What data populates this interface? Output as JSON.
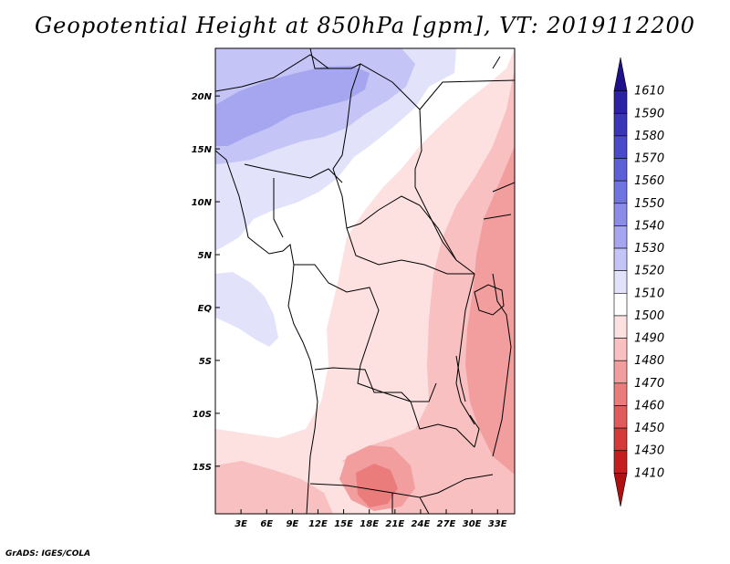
{
  "title": "Geopotential Height at 850hPa [gpm], VT: 2019112200",
  "credit": "GrADS: IGES/COLA",
  "map": {
    "lon_range": [
      0,
      35
    ],
    "lat_range": [
      -19.5,
      24.5
    ],
    "lon_ticks": [
      {
        "v": 3,
        "label": "3E"
      },
      {
        "v": 6,
        "label": "6E"
      },
      {
        "v": 9,
        "label": "9E"
      },
      {
        "v": 12,
        "label": "12E"
      },
      {
        "v": 15,
        "label": "15E"
      },
      {
        "v": 18,
        "label": "18E"
      },
      {
        "v": 21,
        "label": "21E"
      },
      {
        "v": 24,
        "label": "24E"
      },
      {
        "v": 27,
        "label": "27E"
      },
      {
        "v": 30,
        "label": "30E"
      },
      {
        "v": 33,
        "label": "33E"
      }
    ],
    "lat_ticks": [
      {
        "v": 20,
        "label": "20N"
      },
      {
        "v": 15,
        "label": "15N"
      },
      {
        "v": 10,
        "label": "10N"
      },
      {
        "v": 5,
        "label": "5N"
      },
      {
        "v": 0,
        "label": "EQ"
      },
      {
        "v": -5,
        "label": "5S"
      },
      {
        "v": -10,
        "label": "10S"
      },
      {
        "v": -15,
        "label": "15S"
      }
    ]
  },
  "colorbar": {
    "levels": [
      "1610",
      "1590",
      "1580",
      "1570",
      "1560",
      "1550",
      "1540",
      "1530",
      "1520",
      "1510",
      "1500",
      "1490",
      "1480",
      "1470",
      "1460",
      "1450",
      "1430",
      "1410"
    ],
    "colors": [
      "#1f118c",
      "#2b22a4",
      "#3a36b8",
      "#4a4bc8",
      "#5c60d6",
      "#7074e0",
      "#8a8ce8",
      "#a6a6f0",
      "#c4c4f6",
      "#e2e2fb",
      "#ffffff",
      "#fde1e1",
      "#f8c0c0",
      "#f29e9e",
      "#ea7c7c",
      "#e05b5b",
      "#d43a3a",
      "#c41e1e",
      "#ad1111"
    ]
  },
  "legend_colors": {
    "c1520": "#c4c4f6",
    "c1530": "#a6a6f0",
    "c1510": "#e2e2fb",
    "c1500": "#fde1e1",
    "c1490": "#f8c0c0",
    "c1480": "#f29e9e",
    "c1470": "#ea7c7c"
  }
}
